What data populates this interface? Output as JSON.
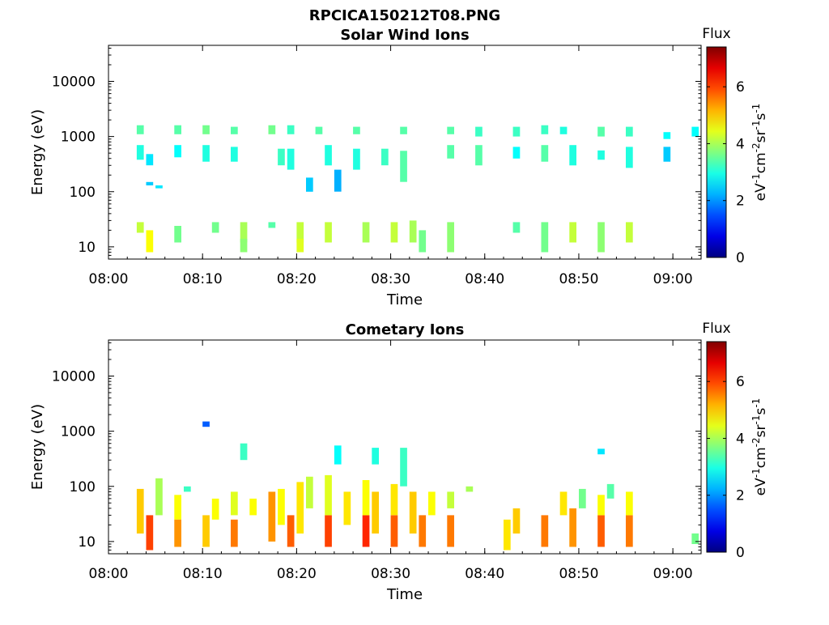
{
  "figure": {
    "title": "RPCICA150212T08.PNG"
  },
  "chart_data": [
    {
      "type": "heatmap",
      "title": "Solar Wind Ions",
      "xlabel": "Time",
      "ylabel": "Energy (eV)",
      "yscale": "log",
      "x_ticks": [
        "08:00",
        "08:10",
        "08:20",
        "08:30",
        "08:40",
        "08:50",
        "09:00"
      ],
      "xlim": [
        "08:00",
        "09:03"
      ],
      "y_ticks": [
        10,
        100,
        1000,
        10000
      ],
      "ylim": [
        6,
        45000
      ],
      "colorbar": {
        "label": "Flux",
        "units_base": "eV",
        "units_parts": [
          "-1",
          "cm",
          "-2",
          "sr",
          "-1",
          "s",
          "-1"
        ],
        "ticks": [
          0,
          2,
          4,
          6
        ],
        "range": [
          0,
          7.4
        ],
        "colormap": "jet"
      },
      "cells": [
        {
          "t": "08:03",
          "e": [
            1100,
            1600
          ],
          "v": 3.4
        },
        {
          "t": "08:03",
          "e": [
            380,
            700
          ],
          "v": 3.0
        },
        {
          "t": "08:04",
          "e": [
            300,
            480
          ],
          "v": 2.6
        },
        {
          "t": "08:03",
          "e": [
            18,
            28
          ],
          "v": 4.2
        },
        {
          "t": "08:04",
          "e": [
            8,
            20
          ],
          "v": 4.6
        },
        {
          "t": "08:04",
          "e": [
            130,
            150
          ],
          "v": 2.4
        },
        {
          "t": "08:05",
          "e": [
            115,
            130
          ],
          "v": 2.6
        },
        {
          "t": "08:07",
          "e": [
            1100,
            1600
          ],
          "v": 3.4
        },
        {
          "t": "08:07",
          "e": [
            420,
            700
          ],
          "v": 2.8
        },
        {
          "t": "08:07",
          "e": [
            12,
            24
          ],
          "v": 3.6
        },
        {
          "t": "08:10",
          "e": [
            1100,
            1600
          ],
          "v": 3.6
        },
        {
          "t": "08:10",
          "e": [
            350,
            700
          ],
          "v": 3.0
        },
        {
          "t": "08:11",
          "e": [
            18,
            28
          ],
          "v": 3.6
        },
        {
          "t": "08:13",
          "e": [
            1100,
            1500
          ],
          "v": 3.4
        },
        {
          "t": "08:13",
          "e": [
            350,
            650
          ],
          "v": 3.0
        },
        {
          "t": "08:14",
          "e": [
            12,
            28
          ],
          "v": 4.0
        },
        {
          "t": "08:14",
          "e": [
            8,
            14
          ],
          "v": 3.8
        },
        {
          "t": "08:17",
          "e": [
            1100,
            1600
          ],
          "v": 3.6
        },
        {
          "t": "08:17",
          "e": [
            22,
            28
          ],
          "v": 3.4
        },
        {
          "t": "08:18",
          "e": [
            300,
            600
          ],
          "v": 3.2
        },
        {
          "t": "08:19",
          "e": [
            1100,
            1600
          ],
          "v": 3.2
        },
        {
          "t": "08:19",
          "e": [
            250,
            600
          ],
          "v": 3.0
        },
        {
          "t": "08:20",
          "e": [
            12,
            28
          ],
          "v": 4.2
        },
        {
          "t": "08:20",
          "e": [
            8,
            14
          ],
          "v": 4.4
        },
        {
          "t": "08:21",
          "e": [
            100,
            180
          ],
          "v": 2.4
        },
        {
          "t": "08:22",
          "e": [
            1100,
            1500
          ],
          "v": 3.4
        },
        {
          "t": "08:23",
          "e": [
            300,
            700
          ],
          "v": 3.0
        },
        {
          "t": "08:23",
          "e": [
            12,
            28
          ],
          "v": 4.2
        },
        {
          "t": "08:24",
          "e": [
            100,
            250
          ],
          "v": 2.2
        },
        {
          "t": "08:26",
          "e": [
            1100,
            1500
          ],
          "v": 3.4
        },
        {
          "t": "08:26",
          "e": [
            250,
            600
          ],
          "v": 3.0
        },
        {
          "t": "08:27",
          "e": [
            12,
            28
          ],
          "v": 4.0
        },
        {
          "t": "08:29",
          "e": [
            300,
            600
          ],
          "v": 3.2
        },
        {
          "t": "08:30",
          "e": [
            12,
            28
          ],
          "v": 4.2
        },
        {
          "t": "08:31",
          "e": [
            1100,
            1500
          ],
          "v": 3.4
        },
        {
          "t": "08:31",
          "e": [
            150,
            550
          ],
          "v": 3.4
        },
        {
          "t": "08:32",
          "e": [
            12,
            30
          ],
          "v": 4.0
        },
        {
          "t": "08:33",
          "e": [
            8,
            20
          ],
          "v": 3.6
        },
        {
          "t": "08:36",
          "e": [
            1100,
            1500
          ],
          "v": 3.4
        },
        {
          "t": "08:36",
          "e": [
            400,
            700
          ],
          "v": 3.4
        },
        {
          "t": "08:36",
          "e": [
            8,
            28
          ],
          "v": 3.8
        },
        {
          "t": "08:39",
          "e": [
            1000,
            1500
          ],
          "v": 3.2
        },
        {
          "t": "08:39",
          "e": [
            300,
            700
          ],
          "v": 3.4
        },
        {
          "t": "08:43",
          "e": [
            1000,
            1500
          ],
          "v": 3.2
        },
        {
          "t": "08:43",
          "e": [
            400,
            650
          ],
          "v": 2.8
        },
        {
          "t": "08:43",
          "e": [
            18,
            28
          ],
          "v": 3.4
        },
        {
          "t": "08:46",
          "e": [
            1100,
            1600
          ],
          "v": 3.2
        },
        {
          "t": "08:46",
          "e": [
            350,
            700
          ],
          "v": 3.4
        },
        {
          "t": "08:46",
          "e": [
            8,
            28
          ],
          "v": 3.6
        },
        {
          "t": "08:48",
          "e": [
            1100,
            1500
          ],
          "v": 3.0
        },
        {
          "t": "08:49",
          "e": [
            300,
            700
          ],
          "v": 3.0
        },
        {
          "t": "08:49",
          "e": [
            12,
            28
          ],
          "v": 4.2
        },
        {
          "t": "08:52",
          "e": [
            1000,
            1500
          ],
          "v": 3.4
        },
        {
          "t": "08:52",
          "e": [
            380,
            560
          ],
          "v": 3.0
        },
        {
          "t": "08:52",
          "e": [
            8,
            28
          ],
          "v": 3.8
        },
        {
          "t": "08:55",
          "e": [
            1000,
            1500
          ],
          "v": 3.2
        },
        {
          "t": "08:55",
          "e": [
            270,
            650
          ],
          "v": 3.0
        },
        {
          "t": "08:55",
          "e": [
            12,
            28
          ],
          "v": 4.2
        },
        {
          "t": "08:59",
          "e": [
            900,
            1200
          ],
          "v": 2.8
        },
        {
          "t": "08:59",
          "e": [
            350,
            650
          ],
          "v": 2.4
        },
        {
          "t": "09:02",
          "e": [
            1000,
            1500
          ],
          "v": 2.8
        }
      ]
    },
    {
      "type": "heatmap",
      "title": "Cometary Ions",
      "xlabel": "Time",
      "ylabel": "Energy (eV)",
      "yscale": "log",
      "x_ticks": [
        "08:00",
        "08:10",
        "08:20",
        "08:30",
        "08:40",
        "08:50",
        "09:00"
      ],
      "xlim": [
        "08:00",
        "09:03"
      ],
      "y_ticks": [
        10,
        100,
        1000,
        10000
      ],
      "ylim": [
        6,
        45000
      ],
      "colorbar": {
        "label": "Flux",
        "units_base": "eV",
        "units_parts": [
          "-1",
          "cm",
          "-2",
          "sr",
          "-1",
          "s",
          "-1"
        ],
        "ticks": [
          0,
          2,
          4,
          6
        ],
        "range": [
          0,
          7.4
        ],
        "colormap": "jet"
      },
      "cells": [
        {
          "t": "08:03",
          "e": [
            14,
            90
          ],
          "v": 5.0
        },
        {
          "t": "08:04",
          "e": [
            7,
            30
          ],
          "v": 6.0
        },
        {
          "t": "08:05",
          "e": [
            30,
            140
          ],
          "v": 4.0
        },
        {
          "t": "08:07",
          "e": [
            25,
            70
          ],
          "v": 4.6
        },
        {
          "t": "08:07",
          "e": [
            8,
            25
          ],
          "v": 5.4
        },
        {
          "t": "08:08",
          "e": [
            80,
            100
          ],
          "v": 3.2
        },
        {
          "t": "08:10",
          "e": [
            8,
            30
          ],
          "v": 5.0
        },
        {
          "t": "08:10",
          "e": [
            1200,
            1500
          ],
          "v": 1.6
        },
        {
          "t": "08:11",
          "e": [
            25,
            60
          ],
          "v": 4.6
        },
        {
          "t": "08:13",
          "e": [
            8,
            25
          ],
          "v": 5.6
        },
        {
          "t": "08:13",
          "e": [
            30,
            80
          ],
          "v": 4.4
        },
        {
          "t": "08:14",
          "e": [
            300,
            600
          ],
          "v": 3.2
        },
        {
          "t": "08:15",
          "e": [
            30,
            60
          ],
          "v": 4.6
        },
        {
          "t": "08:17",
          "e": [
            10,
            80
          ],
          "v": 5.4
        },
        {
          "t": "08:18",
          "e": [
            20,
            90
          ],
          "v": 4.6
        },
        {
          "t": "08:19",
          "e": [
            8,
            30
          ],
          "v": 5.8
        },
        {
          "t": "08:20",
          "e": [
            14,
            120
          ],
          "v": 4.8
        },
        {
          "t": "08:21",
          "e": [
            40,
            150
          ],
          "v": 4.2
        },
        {
          "t": "08:23",
          "e": [
            8,
            30
          ],
          "v": 6.0
        },
        {
          "t": "08:23",
          "e": [
            30,
            160
          ],
          "v": 4.4
        },
        {
          "t": "08:24",
          "e": [
            250,
            550
          ],
          "v": 2.8
        },
        {
          "t": "08:25",
          "e": [
            20,
            80
          ],
          "v": 4.8
        },
        {
          "t": "08:27",
          "e": [
            8,
            30
          ],
          "v": 6.2
        },
        {
          "t": "08:27",
          "e": [
            30,
            130
          ],
          "v": 4.6
        },
        {
          "t": "08:28",
          "e": [
            14,
            80
          ],
          "v": 5.0
        },
        {
          "t": "08:28",
          "e": [
            250,
            500
          ],
          "v": 3.0
        },
        {
          "t": "08:30",
          "e": [
            8,
            30
          ],
          "v": 5.8
        },
        {
          "t": "08:30",
          "e": [
            30,
            110
          ],
          "v": 4.8
        },
        {
          "t": "08:31",
          "e": [
            100,
            500
          ],
          "v": 3.2
        },
        {
          "t": "08:32",
          "e": [
            14,
            80
          ],
          "v": 5.0
        },
        {
          "t": "08:33",
          "e": [
            8,
            30
          ],
          "v": 5.6
        },
        {
          "t": "08:34",
          "e": [
            30,
            80
          ],
          "v": 4.6
        },
        {
          "t": "08:36",
          "e": [
            8,
            30
          ],
          "v": 5.6
        },
        {
          "t": "08:36",
          "e": [
            40,
            80
          ],
          "v": 4.2
        },
        {
          "t": "08:38",
          "e": [
            80,
            100
          ],
          "v": 4.0
        },
        {
          "t": "08:42",
          "e": [
            7,
            25
          ],
          "v": 4.8
        },
        {
          "t": "08:43",
          "e": [
            14,
            40
          ],
          "v": 5.0
        },
        {
          "t": "08:46",
          "e": [
            8,
            30
          ],
          "v": 5.6
        },
        {
          "t": "08:48",
          "e": [
            30,
            80
          ],
          "v": 4.8
        },
        {
          "t": "08:49",
          "e": [
            8,
            40
          ],
          "v": 5.4
        },
        {
          "t": "08:50",
          "e": [
            40,
            90
          ],
          "v": 3.6
        },
        {
          "t": "08:52",
          "e": [
            8,
            30
          ],
          "v": 5.8
        },
        {
          "t": "08:52",
          "e": [
            30,
            70
          ],
          "v": 4.6
        },
        {
          "t": "08:52",
          "e": [
            380,
            480
          ],
          "v": 2.6
        },
        {
          "t": "08:53",
          "e": [
            60,
            110
          ],
          "v": 3.4
        },
        {
          "t": "08:55",
          "e": [
            8,
            30
          ],
          "v": 5.6
        },
        {
          "t": "08:55",
          "e": [
            30,
            80
          ],
          "v": 4.6
        },
        {
          "t": "09:02",
          "e": [
            9,
            14
          ],
          "v": 3.6
        }
      ]
    }
  ]
}
